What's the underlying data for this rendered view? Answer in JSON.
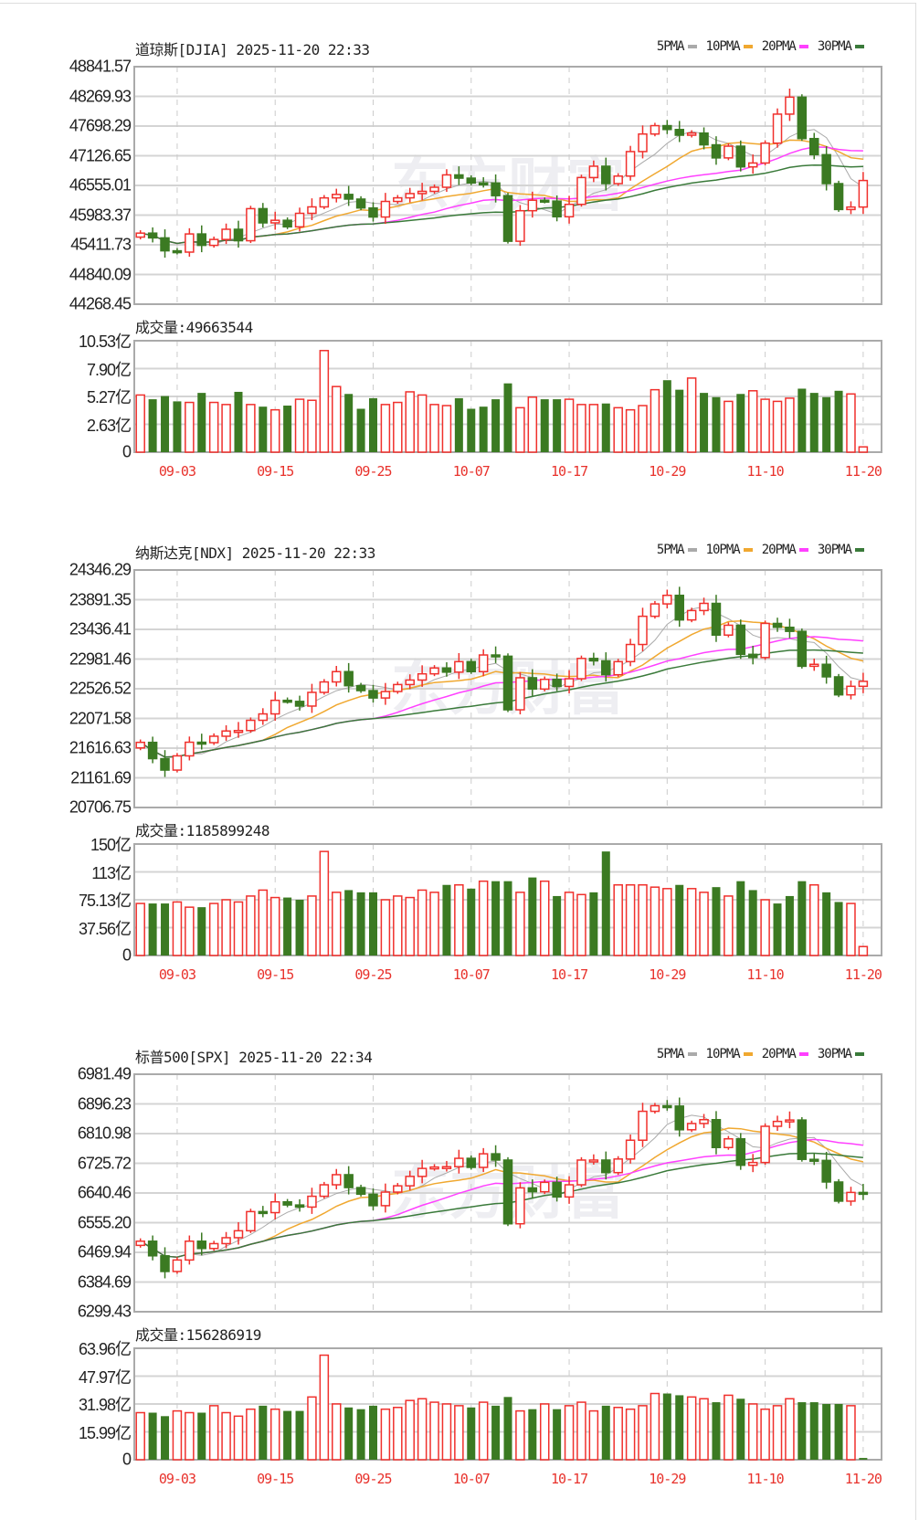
{
  "watermark": "东方财富",
  "colors": {
    "up": "#f0302c",
    "down": "#3b7a22",
    "ma5": "#aaaaaa",
    "ma10": "#f0a830",
    "ma20": "#ff40ff",
    "ma30": "#3a7a3a",
    "date": "#e8322c"
  },
  "legend": [
    {
      "label": "5PMA",
      "period": 5,
      "color": "#aaaaaa"
    },
    {
      "label": "10PMA",
      "period": 10,
      "color": "#f0a830"
    },
    {
      "label": "20PMA",
      "period": 20,
      "color": "#ff40ff"
    },
    {
      "label": "30PMA",
      "period": 30,
      "color": "#3a7a3a"
    }
  ],
  "chart_data": [
    {
      "type": "candlestick",
      "title": "道琼斯[DJIA] 2025-11-20 22:33",
      "ylim": [
        44268.45,
        48841.57
      ],
      "y_ticks": [
        "48841.57",
        "48269.93",
        "47698.29",
        "47126.65",
        "46555.01",
        "45983.37",
        "45411.73",
        "44840.09",
        "44268.45"
      ],
      "volume_label": "成交量:49663544",
      "volume_unit": "亿",
      "volume_ylim": [
        0,
        10.53
      ],
      "volume_ticks": [
        "10.53亿",
        "7.90亿",
        "5.27亿",
        "2.63亿",
        "0"
      ],
      "x_labels": [
        {
          "index": 3,
          "label": "09-03"
        },
        {
          "index": 11,
          "label": "09-15"
        },
        {
          "index": 19,
          "label": "09-25"
        },
        {
          "index": 27,
          "label": "10-07"
        },
        {
          "index": 35,
          "label": "10-17"
        },
        {
          "index": 43,
          "label": "10-29"
        },
        {
          "index": 51,
          "label": "11-10"
        },
        {
          "index": 59,
          "label": "11-20"
        }
      ],
      "open_first": 45560,
      "close": [
        45637,
        45545,
        45296,
        45271,
        45621,
        45401,
        45515,
        45711,
        45490,
        46108,
        45834,
        45884,
        45758,
        46018,
        46142,
        46315,
        46382,
        46292,
        46121,
        45947,
        46247,
        46316,
        46398,
        46441,
        46520,
        46758,
        46695,
        46603,
        46602,
        46358,
        45480,
        46068,
        46270,
        46253,
        45952,
        46191,
        46707,
        46925,
        46590,
        46735,
        47207,
        47545,
        47706,
        47632,
        47522,
        47563,
        47337,
        47085,
        47311,
        46912,
        46987,
        47369,
        47928,
        48255,
        47457,
        47147,
        46590,
        46091,
        46139,
        46650
      ],
      "volume": [
        5.4,
        5.0,
        5.3,
        4.8,
        4.7,
        5.6,
        4.7,
        4.5,
        5.7,
        4.5,
        4.3,
        4.0,
        4.4,
        5.0,
        4.9,
        9.6,
        6.2,
        5.5,
        4.1,
        5.1,
        4.5,
        4.7,
        5.7,
        5.4,
        4.5,
        4.4,
        5.1,
        4.1,
        4.3,
        5.0,
        6.5,
        4.2,
        5.2,
        5.0,
        5.0,
        5.0,
        4.5,
        4.5,
        4.6,
        4.2,
        4.0,
        4.4,
        5.9,
        6.8,
        5.9,
        7.0,
        5.6,
        5.2,
        4.8,
        5.5,
        5.8,
        5.0,
        4.8,
        5.1,
        6.0,
        5.6,
        5.2,
        5.8,
        5.5,
        0.5
      ]
    },
    {
      "type": "candlestick",
      "title": "纳斯达克[NDX] 2025-11-20 22:33",
      "ylim": [
        20706.75,
        24346.29
      ],
      "y_ticks": [
        "24346.29",
        "23891.35",
        "23436.41",
        "22981.46",
        "22526.52",
        "22071.58",
        "21616.63",
        "21161.69",
        "20706.75"
      ],
      "volume_label": "成交量:1185899248",
      "volume_unit": "亿",
      "volume_ylim": [
        0,
        150
      ],
      "volume_ticks": [
        "150亿",
        "113亿",
        "75.13亿",
        "37.56亿",
        "0"
      ],
      "x_labels": [
        {
          "index": 3,
          "label": "09-03"
        },
        {
          "index": 11,
          "label": "09-15"
        },
        {
          "index": 19,
          "label": "09-25"
        },
        {
          "index": 27,
          "label": "10-07"
        },
        {
          "index": 35,
          "label": "10-17"
        },
        {
          "index": 43,
          "label": "10-29"
        },
        {
          "index": 51,
          "label": "11-10"
        },
        {
          "index": 59,
          "label": "11-20"
        }
      ],
      "open_first": 21620,
      "close": [
        21705,
        21455,
        21280,
        21498,
        21707,
        21700,
        21799,
        21879,
        21886,
        22043,
        22141,
        22349,
        22333,
        22261,
        22471,
        22631,
        22789,
        22573,
        22498,
        22385,
        22484,
        22591,
        22660,
        22755,
        22845,
        22781,
        22942,
        22789,
        23044,
        23025,
        22204,
        22695,
        22522,
        22671,
        22562,
        22680,
        22991,
        22954,
        22741,
        22942,
        23205,
        23637,
        23827,
        23958,
        23581,
        23725,
        23835,
        23349,
        23500,
        23054,
        23005,
        23528,
        23468,
        23406,
        22871,
        22901,
        22709,
        22433,
        22564,
        22640
      ],
      "volume": [
        70,
        70,
        70,
        72,
        65,
        65,
        70,
        75,
        72,
        80,
        88,
        78,
        78,
        75,
        80,
        140,
        85,
        88,
        85,
        85,
        75,
        80,
        78,
        88,
        85,
        95,
        95,
        90,
        100,
        100,
        100,
        85,
        105,
        100,
        80,
        85,
        82,
        85,
        140,
        95,
        95,
        95,
        92,
        90,
        95,
        90,
        85,
        92,
        80,
        100,
        88,
        75,
        70,
        80,
        100,
        95,
        85,
        72,
        70,
        12
      ]
    },
    {
      "type": "candlestick",
      "title": "标普500[SPX] 2025-11-20 22:34",
      "ylim": [
        6299.43,
        6981.49
      ],
      "y_ticks": [
        "6981.49",
        "6896.23",
        "6810.98",
        "6725.72",
        "6640.46",
        "6555.20",
        "6469.94",
        "6384.69",
        "6299.43"
      ],
      "volume_label": "成交量:156286919",
      "volume_unit": "亿",
      "volume_ylim": [
        0,
        63.96
      ],
      "volume_ticks": [
        "63.96亿",
        "47.97亿",
        "31.98亿",
        "15.99亿",
        "0"
      ],
      "x_labels": [
        {
          "index": 3,
          "label": "09-03"
        },
        {
          "index": 11,
          "label": "09-15"
        },
        {
          "index": 19,
          "label": "09-25"
        },
        {
          "index": 27,
          "label": "10-07"
        },
        {
          "index": 35,
          "label": "10-17"
        },
        {
          "index": 43,
          "label": "10-29"
        },
        {
          "index": 51,
          "label": "11-10"
        },
        {
          "index": 59,
          "label": "11-20"
        }
      ],
      "open_first": 6490,
      "close": [
        6502,
        6460,
        6415,
        6448,
        6502,
        6481,
        6495,
        6512,
        6532,
        6587,
        6584,
        6615,
        6606,
        6600,
        6631,
        6664,
        6693,
        6656,
        6637,
        6604,
        6643,
        6661,
        6688,
        6711,
        6715,
        6716,
        6740,
        6714,
        6753,
        6735,
        6552,
        6655,
        6644,
        6671,
        6629,
        6664,
        6735,
        6735,
        6699,
        6738,
        6792,
        6875,
        6891,
        6890,
        6822,
        6840,
        6851,
        6771,
        6796,
        6720,
        6728,
        6832,
        6846,
        6850,
        6737,
        6734,
        6672,
        6617,
        6642,
        6640
      ],
      "volume": [
        27,
        27,
        25,
        28,
        27,
        27,
        31,
        27,
        25,
        29,
        31,
        29,
        28,
        28,
        36,
        60,
        32,
        30,
        29,
        31,
        29,
        30,
        34,
        35,
        33,
        32,
        31,
        30,
        33,
        31,
        36,
        28,
        29,
        32,
        29,
        31,
        33,
        28,
        31,
        30,
        29,
        31,
        38,
        38,
        37,
        36,
        35,
        33,
        37,
        35,
        32,
        29,
        31,
        35,
        33,
        33,
        32,
        32,
        31,
        1
      ]
    }
  ]
}
